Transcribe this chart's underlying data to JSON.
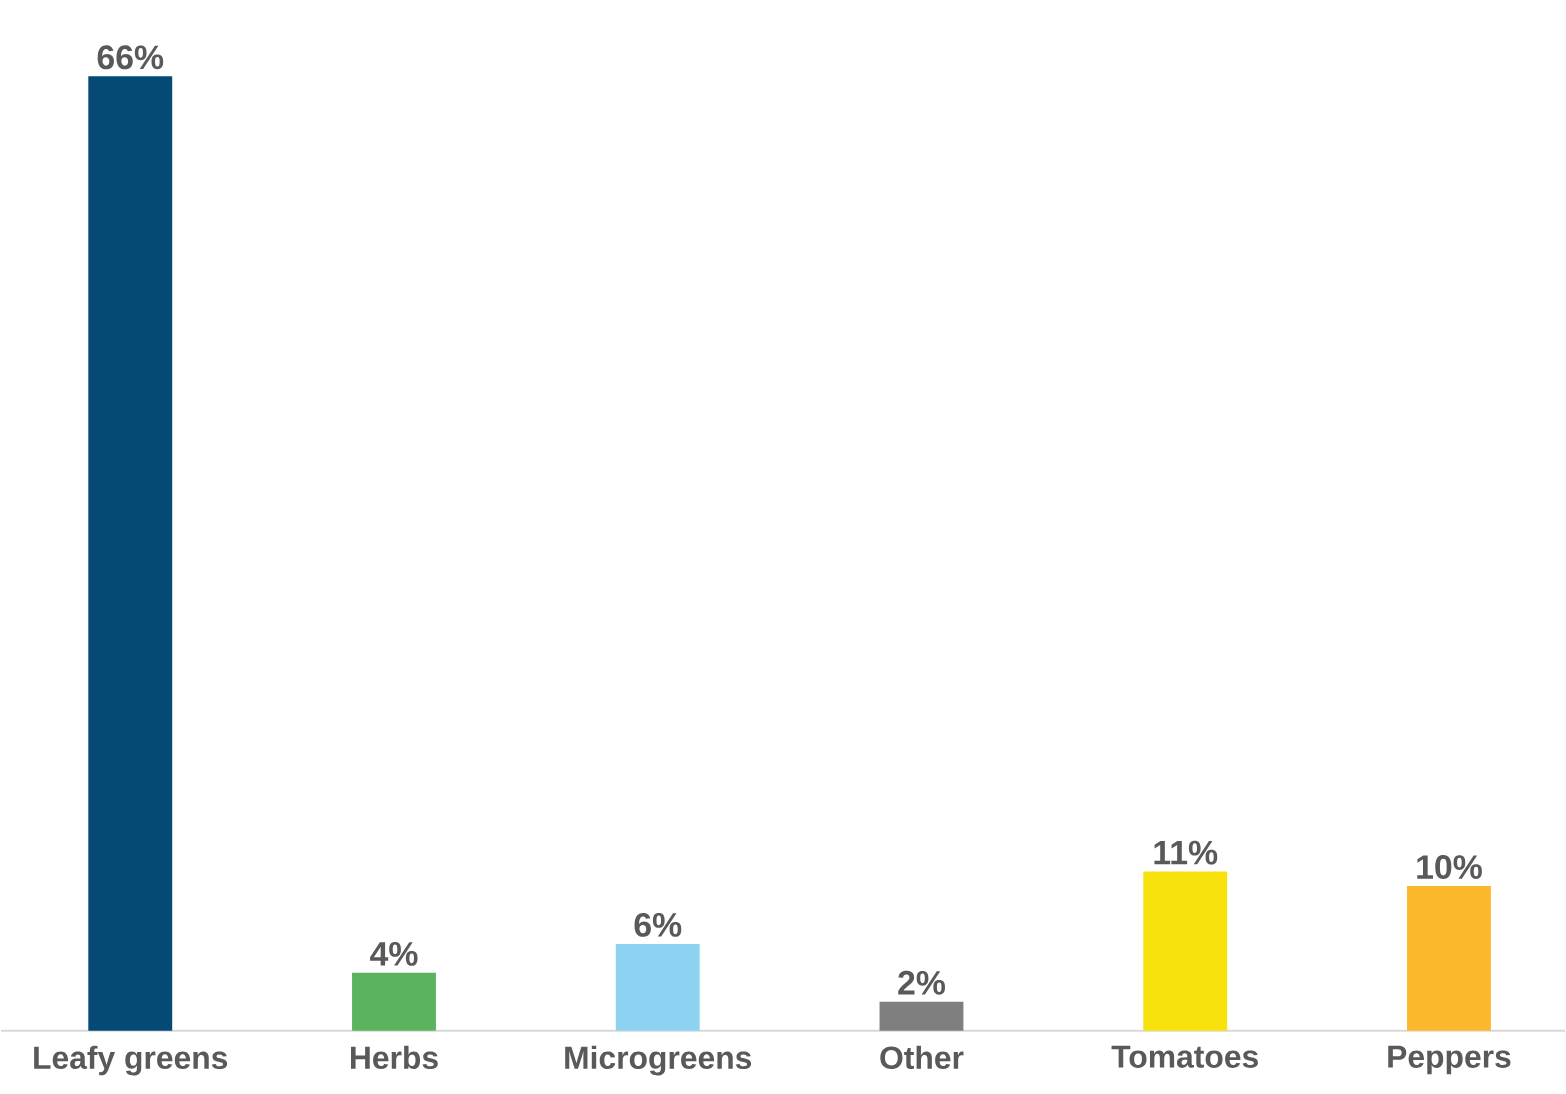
{
  "chart_data": {
    "type": "bar",
    "categories": [
      "Leafy greens",
      "Herbs",
      "Microgreens",
      "Other",
      "Tomatoes",
      "Peppers"
    ],
    "values": [
      66,
      4,
      6,
      2,
      11,
      10
    ],
    "colors": [
      "#054a74",
      "#5cb35e",
      "#8dd2f0",
      "#7f7f7f",
      "#f7e20e",
      "#fbb82c"
    ],
    "value_labels": [
      "66%",
      "4%",
      "6%",
      "2%",
      "11%",
      "10%"
    ]
  }
}
